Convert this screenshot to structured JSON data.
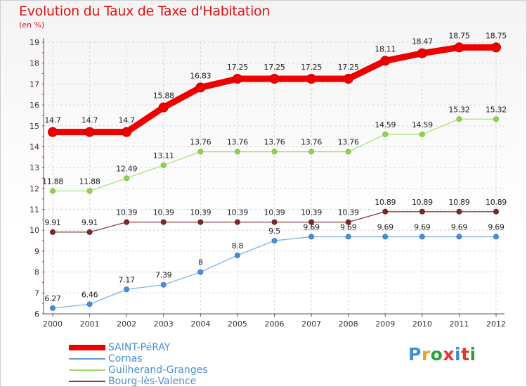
{
  "title": "Evolution du Taux de Taxe d'Habitation",
  "subtitle": "(en %)",
  "logo_text": "Proxiti",
  "chart_data": {
    "type": "line",
    "title": "Evolution du Taux de Taxe d'Habitation",
    "subtitle": "(en %)",
    "ylim": [
      6,
      19
    ],
    "y_ticks": [
      "6",
      "7",
      "8",
      "9",
      "10",
      "11",
      "12",
      "13",
      "14",
      "15",
      "16",
      "17",
      "18",
      "19"
    ],
    "categories": [
      "2000",
      "2001",
      "2002",
      "2003",
      "2004",
      "2005",
      "2006",
      "2007",
      "2008",
      "2009",
      "2010",
      "2011",
      "2012"
    ],
    "grid": true,
    "legend_position": "bottom-left",
    "series": [
      {
        "name": "SAINT-PéRAY",
        "color": "#ee0000",
        "values": [
          14.7,
          14.7,
          14.7,
          15.88,
          16.83,
          17.25,
          17.25,
          17.25,
          17.25,
          18.11,
          18.47,
          18.75,
          18.75
        ],
        "labels": [
          "14.7",
          "14.7",
          "14.7",
          "15.88",
          "16.83",
          "17.25",
          "17.25",
          "17.25",
          "17.25",
          "18.11",
          "18.47",
          "18.75",
          "18.75"
        ]
      },
      {
        "name": "Cornas",
        "color": "#5b9bd5",
        "values": [
          6.27,
          6.46,
          7.17,
          7.39,
          8,
          8.8,
          9.5,
          9.69,
          9.69,
          9.69,
          9.69,
          9.69,
          9.69
        ],
        "labels": [
          "6.27",
          "6.46",
          "7.17",
          "7.39",
          "8",
          "8.8",
          "9.5",
          "9.69",
          "9.69",
          "9.69",
          "9.69",
          "9.69",
          "9.69"
        ]
      },
      {
        "name": "Guilherand-Granges",
        "color": "#99dd66",
        "values": [
          11.88,
          11.88,
          12.49,
          13.11,
          13.76,
          13.76,
          13.76,
          13.76,
          13.76,
          14.59,
          14.59,
          15.32,
          15.32
        ],
        "labels": [
          "11.88",
          "11.88",
          "12.49",
          "13.11",
          "13.76",
          "13.76",
          "13.76",
          "13.76",
          "13.76",
          "14.59",
          "14.59",
          "15.32",
          "15.32"
        ]
      },
      {
        "name": "Bourg-lès-Valence",
        "color": "#8b3a3a",
        "values": [
          9.91,
          9.91,
          10.39,
          10.39,
          10.39,
          10.39,
          10.39,
          10.39,
          10.39,
          10.89,
          10.89,
          10.89,
          10.89
        ],
        "labels": [
          "9.91",
          "9.91",
          "10.39",
          "10.39",
          "10.39",
          "10.39",
          "10.39",
          "10.39",
          "10.39",
          "10.89",
          "10.89",
          "10.89",
          "10.89"
        ]
      }
    ]
  }
}
